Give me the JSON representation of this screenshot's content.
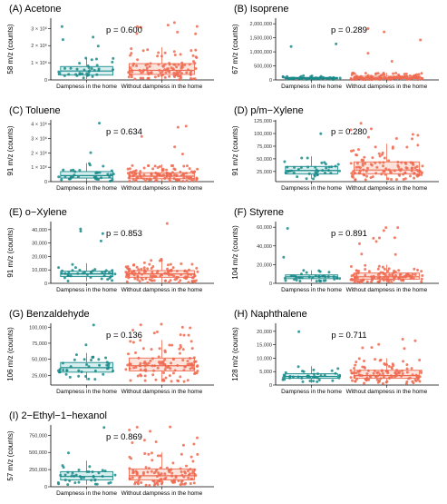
{
  "colors": {
    "dampness": "#1a8a8a",
    "without": "#ee6a50",
    "without_box_fill": "#fbe3dc",
    "dampness_box_fill": "#d7eeee",
    "axis": "#000000"
  },
  "chart_data": [
    {
      "type": "box",
      "panel": "(A)",
      "title": "Acetone",
      "ylabel": "58 m/z (counts)",
      "yticks": [
        "0",
        "1 × 10⁶",
        "2 × 10⁶",
        "3 × 10⁶"
      ],
      "ytick_values": [
        0,
        1000000,
        2000000,
        3000000
      ],
      "ylim": [
        0,
        3600000
      ],
      "categories": [
        "Dampness in the home",
        "Without dampness in the home"
      ],
      "p_label": "p = 0.600",
      "stats": [
        {
          "q1": 280000,
          "median": 520000,
          "q3": 780000,
          "wlow": 50000,
          "whigh": 1300000
        },
        {
          "q1": 320000,
          "median": 560000,
          "q3": 950000,
          "wlow": 20000,
          "whigh": 1900000
        }
      ]
    },
    {
      "type": "box",
      "panel": "(B)",
      "title": "Isoprene",
      "ylabel": "67 m/z (counts)",
      "yticks": [
        "0",
        "500,000",
        "1,000,000",
        "1,500,000",
        "2,000,000"
      ],
      "ytick_values": [
        0,
        500000,
        1000000,
        1500000,
        2000000
      ],
      "ylim": [
        0,
        2200000
      ],
      "categories": [
        "Dampness in the home",
        "Without dampness in the home"
      ],
      "p_label": "p = 0.289",
      "stats": [
        {
          "q1": 40000,
          "median": 60000,
          "q3": 90000,
          "wlow": 15000,
          "whigh": 150000
        },
        {
          "q1": 45000,
          "median": 75000,
          "q3": 130000,
          "wlow": 10000,
          "whigh": 250000
        }
      ]
    },
    {
      "type": "box",
      "panel": "(C)",
      "title": "Toluene",
      "ylabel": "91 m/z (counts)",
      "yticks": [
        "0",
        "1 × 10⁶",
        "2 × 10⁶",
        "3 × 10⁶",
        "4 × 10⁶"
      ],
      "ytick_values": [
        0,
        1000000,
        2000000,
        3000000,
        4000000
      ],
      "ylim": [
        0,
        4300000
      ],
      "categories": [
        "Dampness in the home",
        "Without dampness in the home"
      ],
      "p_label": "p = 0.634",
      "stats": [
        {
          "q1": 250000,
          "median": 420000,
          "q3": 700000,
          "wlow": 30000,
          "whigh": 1300000
        },
        {
          "q1": 200000,
          "median": 380000,
          "q3": 620000,
          "wlow": 20000,
          "whigh": 1200000
        }
      ]
    },
    {
      "type": "box",
      "panel": "(D)",
      "title": "p/m−Xylene",
      "ylabel": "91 m/z (counts)",
      "yticks": [
        "25,000",
        "50,000",
        "75,000",
        "100,000",
        "125,000"
      ],
      "ytick_values": [
        25000,
        50000,
        75000,
        100000,
        125000
      ],
      "ylim": [
        5000,
        127000
      ],
      "categories": [
        "Dampness in the home",
        "Without dampness in the home"
      ],
      "p_label": "p = 0.280",
      "stats": [
        {
          "q1": 20000,
          "median": 27000,
          "q3": 35000,
          "wlow": 10000,
          "whigh": 55000
        },
        {
          "q1": 20000,
          "median": 28000,
          "q3": 44000,
          "wlow": 8000,
          "whigh": 80000
        }
      ]
    },
    {
      "type": "box",
      "panel": "(E)",
      "title": "o−Xylene",
      "ylabel": "91 m/z (counts)",
      "yticks": [
        "0",
        "10,000",
        "20,000",
        "30,000",
        "40,000"
      ],
      "ytick_values": [
        0,
        10000,
        20000,
        30000,
        40000
      ],
      "ylim": [
        0,
        46000
      ],
      "categories": [
        "Dampness in the home",
        "Without dampness in the home"
      ],
      "p_label": "p = 0.853",
      "stats": [
        {
          "q1": 5000,
          "median": 7000,
          "q3": 9000,
          "wlow": 1500,
          "whigh": 15000
        },
        {
          "q1": 4500,
          "median": 7000,
          "q3": 9500,
          "wlow": 500,
          "whigh": 18000
        }
      ]
    },
    {
      "type": "box",
      "panel": "(F)",
      "title": "Styrene",
      "ylabel": "104 m/z (counts)",
      "yticks": [
        "0",
        "20,000",
        "40,000",
        "60,000"
      ],
      "ytick_values": [
        0,
        20000,
        40000,
        60000
      ],
      "ylim": [
        0,
        66000
      ],
      "categories": [
        "Dampness in the home",
        "Without dampness in the home"
      ],
      "p_label": "p = 0.891",
      "stats": [
        {
          "q1": 5000,
          "median": 7000,
          "q3": 9000,
          "wlow": 2000,
          "whigh": 14000
        },
        {
          "q1": 4500,
          "median": 7000,
          "q3": 11000,
          "wlow": 1000,
          "whigh": 20000
        }
      ]
    },
    {
      "type": "box",
      "panel": "(G)",
      "title": "Benzaldehyde",
      "ylabel": "106 m/z (counts)",
      "yticks": [
        "25,000",
        "50,000",
        "75,000",
        "100,000"
      ],
      "ytick_values": [
        25000,
        50000,
        75000,
        100000
      ],
      "ylim": [
        10000,
        106000
      ],
      "categories": [
        "Dampness in the home",
        "Without dampness in the home"
      ],
      "p_label": "p = 0.136",
      "stats": [
        {
          "q1": 30000,
          "median": 37000,
          "q3": 45000,
          "wlow": 18000,
          "whigh": 60000
        },
        {
          "q1": 32000,
          "median": 40000,
          "q3": 52000,
          "wlow": 15000,
          "whigh": 80000
        }
      ]
    },
    {
      "type": "box",
      "panel": "(H)",
      "title": "Naphthalene",
      "ylabel": "128 m/z (counts)",
      "yticks": [
        "0",
        "5,000",
        "10,000",
        "15,000",
        "20,000"
      ],
      "ytick_values": [
        0,
        5000,
        10000,
        15000,
        20000
      ],
      "ylim": [
        0,
        23000
      ],
      "categories": [
        "Dampness in the home",
        "Without dampness in the home"
      ],
      "p_label": "p = 0.711",
      "stats": [
        {
          "q1": 2500,
          "median": 3200,
          "q3": 4200,
          "wlow": 800,
          "whigh": 7000
        },
        {
          "q1": 2500,
          "median": 3500,
          "q3": 5500,
          "wlow": 500,
          "whigh": 10000
        }
      ]
    },
    {
      "type": "box",
      "panel": "(I)",
      "title": "2−Ethyl−1−hexanol",
      "ylabel": "57 m/z (counts)",
      "yticks": [
        "0",
        "250,000",
        "500,000",
        "750,000"
      ],
      "ytick_values": [
        0,
        250000,
        500000,
        750000
      ],
      "ylim": [
        0,
        900000
      ],
      "categories": [
        "Dampness in the home",
        "Without dampness in the home"
      ],
      "p_label": "p = 0.869",
      "stats": [
        {
          "q1": 100000,
          "median": 150000,
          "q3": 220000,
          "wlow": 30000,
          "whigh": 380000
        },
        {
          "q1": 100000,
          "median": 160000,
          "q3": 260000,
          "wlow": 20000,
          "whigh": 500000
        }
      ]
    }
  ]
}
